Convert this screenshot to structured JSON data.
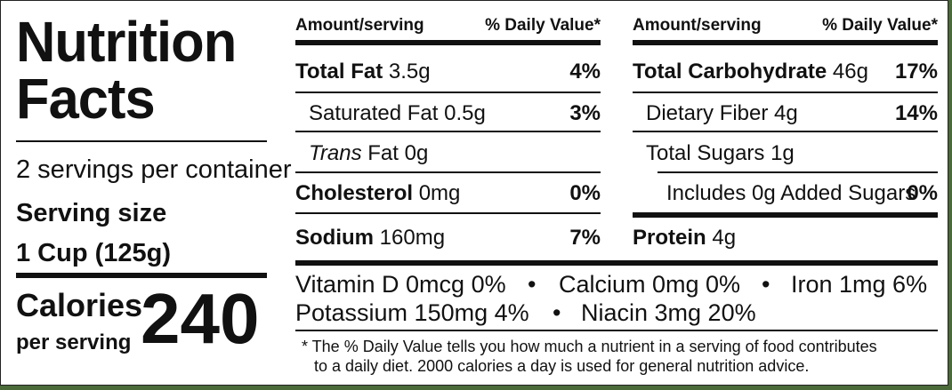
{
  "title": "Nutrition Facts",
  "servings_per_container": "2 servings per container",
  "serving_size_label": "Serving size",
  "serving_size_value": "1 Cup (125g)",
  "calories_label": "Calories",
  "calories_sub": "per serving",
  "calories_value": "240",
  "header": {
    "amount": "Amount/serving",
    "dv": "% Daily Value*"
  },
  "left_rows": [
    {
      "name": "Total Fat",
      "amount": "3.5g",
      "dv": "4%"
    },
    {
      "name": "Saturated Fat",
      "amount": "0.5g",
      "dv": "3%"
    },
    {
      "name": "Trans",
      "amount": "Fat 0g",
      "dv": ""
    },
    {
      "name": "Cholesterol",
      "amount": "0mg",
      "dv": "0%"
    },
    {
      "name": "Sodium",
      "amount": "160mg",
      "dv": "7%"
    }
  ],
  "right_rows": [
    {
      "name": "Total Carbohydrate",
      "amount": "46g",
      "dv": "17%"
    },
    {
      "name": "Dietary Fiber",
      "amount": "4g",
      "dv": "14%"
    },
    {
      "name": "Total Sugars",
      "amount": "1g",
      "dv": ""
    },
    {
      "name": "Includes 0g Added Sugars",
      "amount": "",
      "dv": "0%"
    },
    {
      "name": "Protein",
      "amount": "4g",
      "dv": ""
    }
  ],
  "vitamins": {
    "vitd": "Vitamin D 0mcg 0%",
    "calcium": "Calcium 0mg 0%",
    "iron": "Iron 1mg 6%",
    "potassium": "Potassium 150mg 4%",
    "niacin": "Niacin 3mg 20%",
    "bullet": "•"
  },
  "footnote_line1": "* The % Daily Value  tells you how much a nutrient in a serving of food contributes",
  "footnote_line2": "to a daily diet. 2000 calories a day is used for general nutrition advice."
}
